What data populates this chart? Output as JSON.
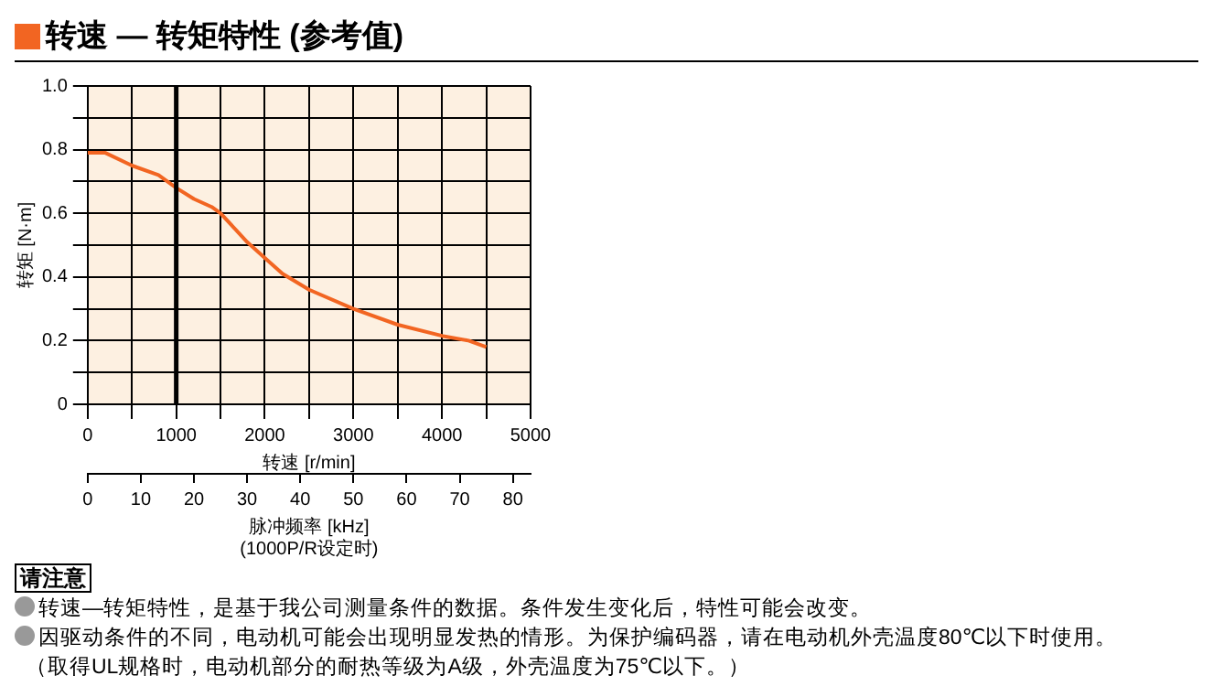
{
  "chart_data": {
    "type": "line",
    "title": "转速 — 转矩特性 (参考值)",
    "xlabel": "转速 [r/min]",
    "ylabel": "转矩 [N·m]",
    "x2label": "脉冲频率 [kHz]\n(1000P/R设定时)",
    "x": [
      0,
      200,
      500,
      800,
      1000,
      1200,
      1400,
      1500,
      1800,
      2000,
      2200,
      2500,
      3000,
      3500,
      4000,
      4300,
      4500
    ],
    "series": [
      {
        "color": "#f26522",
        "values": [
          0.79,
          0.79,
          0.75,
          0.72,
          0.68,
          0.645,
          0.62,
          0.6,
          0.51,
          0.46,
          0.41,
          0.36,
          0.3,
          0.25,
          0.215,
          0.2,
          0.18
        ]
      }
    ],
    "xlim": [
      0,
      5000
    ],
    "xticks": [
      0,
      {
        "value": 500,
        "label": null
      },
      1000,
      {
        "value": 1500,
        "label": null
      },
      2000,
      {
        "value": 2500,
        "label": null
      },
      3000,
      {
        "value": 3500,
        "label": null
      },
      4000,
      {
        "value": 4500,
        "label": null
      },
      5000
    ],
    "ylim": [
      0,
      1
    ],
    "yticks": [
      0,
      {
        "value": 0.1,
        "label": null
      },
      0.2,
      {
        "value": 0.3,
        "label": null
      },
      0.4,
      {
        "value": 0.5,
        "label": null
      },
      0.6,
      {
        "value": 0.7,
        "label": null
      },
      0.8,
      {
        "value": 0.9,
        "label": null
      },
      {
        "value": 1,
        "label": "1.0"
      }
    ],
    "x2lim": [
      0,
      83.33
    ],
    "x2ticks": [
      0,
      10,
      20,
      30,
      40,
      50,
      60,
      70,
      80
    ],
    "ref_lines": [
      {
        "axis": "x",
        "value": 1000,
        "label": null
      }
    ],
    "grid": true,
    "legend": false,
    "marker": "none",
    "line_style": "solid",
    "annotations": [
      "请注意",
      "转速—转矩特性，是基于我公司测量条件的数据。条件发生变化后，特性可能会改变。",
      "因驱动条件的不同，电动机可能会出现明显发热的情形。为保护编码器，请在电动机外壳温度80℃以下时使用。",
      "（取得UL规格时，电动机部分的耐热等级为A级，外壳温度为75℃以下。）"
    ]
  }
}
